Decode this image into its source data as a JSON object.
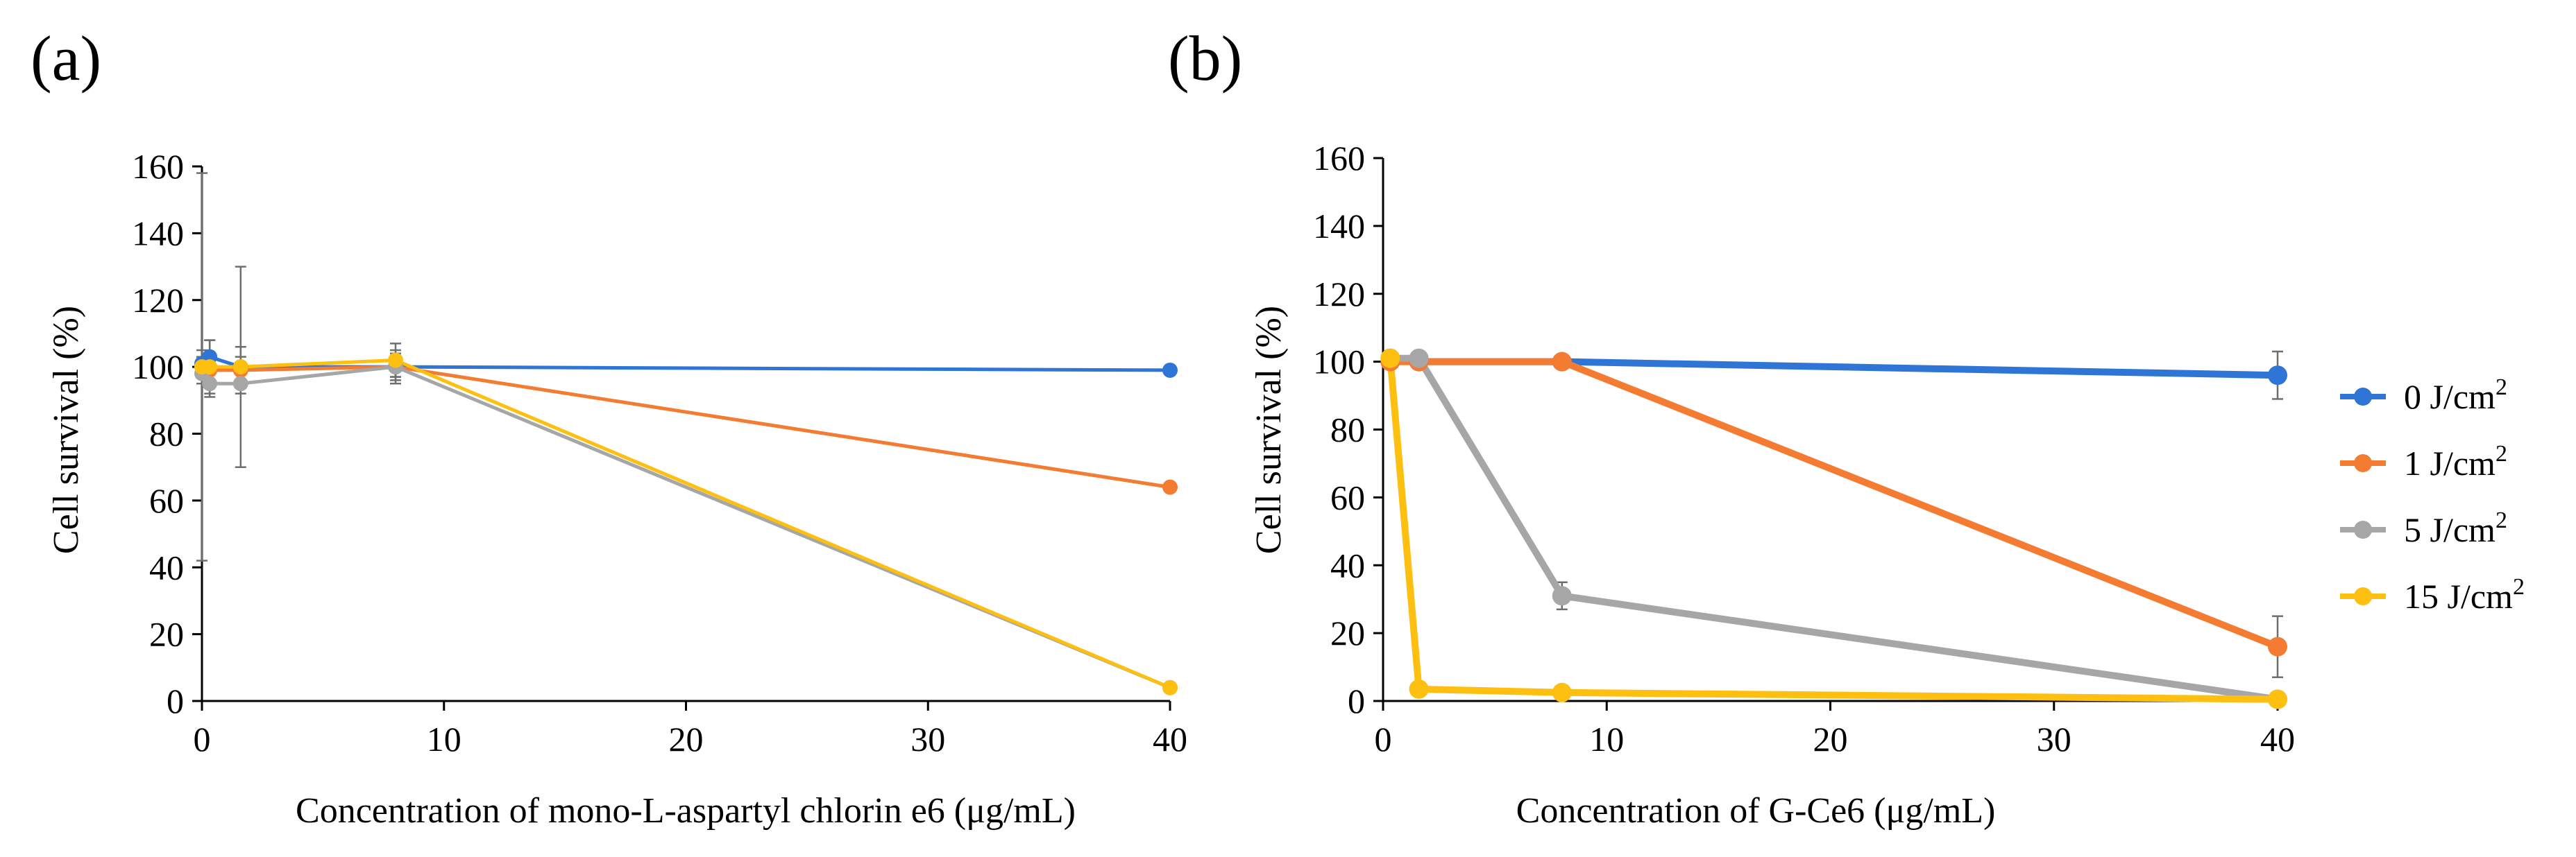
{
  "chart_data": [
    {
      "type": "line",
      "panel_label": "(a)",
      "xlabel": "Concentration of mono-L-aspartyl chlorin e6 (μg/mL)",
      "ylabel": "Cell survival (%)",
      "xlim": [
        0,
        40
      ],
      "ylim": [
        0,
        160
      ],
      "xticks": [
        0,
        10,
        20,
        30,
        40
      ],
      "yticks": [
        0,
        20,
        40,
        60,
        80,
        100,
        120,
        140,
        160
      ],
      "grid": false,
      "series": [
        {
          "name": "0 J/cm²",
          "color": "#2E75D6",
          "x": [
            0,
            0.32,
            1.6,
            8,
            40
          ],
          "y": [
            101,
            103,
            100,
            100,
            99
          ],
          "err": [
            4,
            5,
            6,
            5,
            1
          ]
        },
        {
          "name": "1 J/cm²",
          "color": "#F37B32",
          "x": [
            0,
            0.32,
            1.6,
            8,
            40
          ],
          "y": [
            100,
            99,
            99,
            100,
            64
          ],
          "err": [
            3,
            4,
            4,
            3,
            1
          ]
        },
        {
          "name": "5 J/cm²",
          "color": "#A6A6A6",
          "x": [
            0,
            0.32,
            1.6,
            8,
            40
          ],
          "y": [
            98,
            95,
            95,
            100,
            4
          ],
          "err": [
            3,
            4,
            3,
            4,
            1
          ]
        },
        {
          "name": "15 J/cm²",
          "color": "#FDC010",
          "x": [
            0,
            0.32,
            1.6,
            8,
            40
          ],
          "y": [
            100,
            100,
            100,
            102,
            4
          ],
          "err": [
            58,
            8,
            30,
            5,
            1
          ]
        }
      ]
    },
    {
      "type": "line",
      "panel_label": "(b)",
      "xlabel": "Concentration of G-Ce6 (μg/mL)",
      "ylabel": "Cell survival (%)",
      "xlim": [
        0,
        40
      ],
      "ylim": [
        0,
        160
      ],
      "xticks": [
        0,
        10,
        20,
        30,
        40
      ],
      "yticks": [
        0,
        20,
        40,
        60,
        80,
        100,
        120,
        140,
        160
      ],
      "grid": false,
      "legend_position": "right",
      "series": [
        {
          "name": "0 J/cm²",
          "color": "#2E75D6",
          "x": [
            0.32,
            1.6,
            8,
            40
          ],
          "y": [
            101,
            100,
            100,
            96
          ],
          "err": [
            1,
            1,
            1,
            7
          ]
        },
        {
          "name": "1 J/cm²",
          "color": "#F37B32",
          "x": [
            0.32,
            1.6,
            8,
            40
          ],
          "y": [
            100,
            100,
            100,
            16
          ],
          "err": [
            1,
            1,
            2,
            9
          ]
        },
        {
          "name": "5 J/cm²",
          "color": "#A6A6A6",
          "x": [
            0.32,
            1.6,
            8,
            40
          ],
          "y": [
            101,
            101,
            31,
            0.5
          ],
          "err": [
            1,
            1,
            4,
            1
          ]
        },
        {
          "name": "15 J/cm²",
          "color": "#FDC010",
          "x": [
            0.32,
            1.6,
            8,
            40
          ],
          "y": [
            101,
            3.5,
            2.5,
            0.5
          ],
          "err": [
            1,
            0.5,
            0.5,
            0.5
          ]
        }
      ]
    }
  ],
  "legend": {
    "items": [
      {
        "value": "0 J/cm",
        "sup": "2",
        "color": "#2E75D6"
      },
      {
        "value": "1 J/cm",
        "sup": "2",
        "color": "#F37B32"
      },
      {
        "value": "5 J/cm",
        "sup": "2",
        "color": "#A6A6A6"
      },
      {
        "value": "15 J/cm",
        "sup": "2",
        "color": "#FDC010"
      }
    ]
  }
}
